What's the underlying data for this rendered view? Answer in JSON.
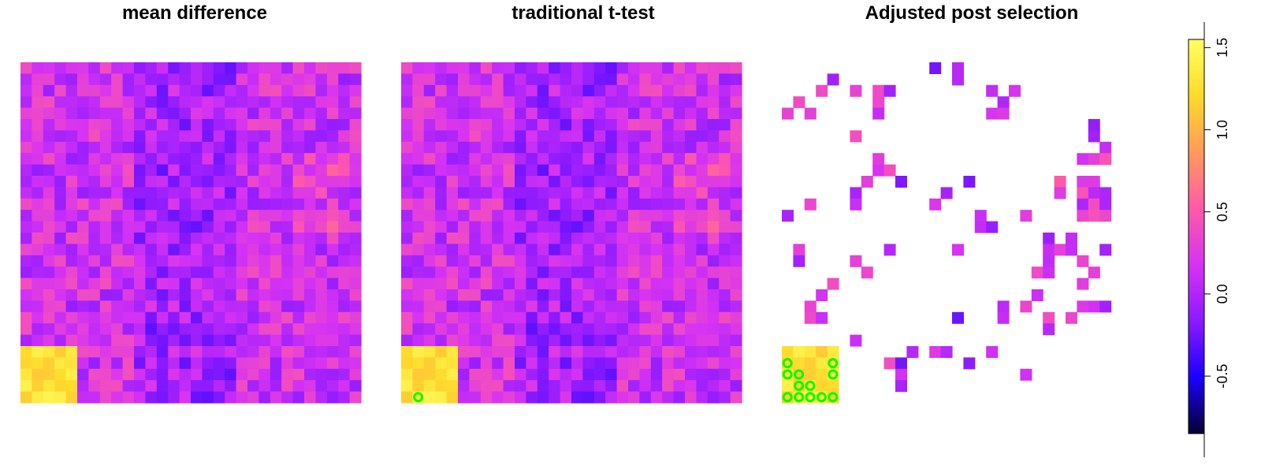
{
  "chart_data": {
    "type": "heatmap",
    "grid": {
      "rows": 30,
      "cols": 30,
      "note": "row 0 = top row of each panel"
    },
    "color_scale": {
      "min": -0.85,
      "max": 1.55,
      "ticks": [
        "-0.5",
        "0.0",
        "0.5",
        "1.0",
        "1.5"
      ],
      "tick_values": [
        -0.5,
        0.0,
        0.5,
        1.0,
        1.5
      ],
      "stops": [
        "#07002e",
        "#1a00ff",
        "#8c1aff",
        "#d633f2",
        "#ff5aa8",
        "#ff9a5a",
        "#ffdb2a",
        "#ffff60"
      ]
    },
    "panels": [
      {
        "title": "mean difference",
        "field": "full",
        "masked": false,
        "markers": []
      },
      {
        "title": "traditional t-test",
        "field": "full",
        "masked": false,
        "markers": [
          [
            29,
            1
          ]
        ]
      },
      {
        "title": "Adjusted post selection",
        "field": "full",
        "masked": true,
        "visible_cells": [
          [
            0,
            13
          ],
          [
            0,
            15
          ],
          [
            1,
            15
          ],
          [
            1,
            4
          ],
          [
            2,
            3
          ],
          [
            2,
            6
          ],
          [
            2,
            8
          ],
          [
            2,
            9
          ],
          [
            2,
            18
          ],
          [
            2,
            20
          ],
          [
            3,
            1
          ],
          [
            3,
            8
          ],
          [
            3,
            19
          ],
          [
            4,
            0
          ],
          [
            4,
            2
          ],
          [
            4,
            8
          ],
          [
            4,
            18
          ],
          [
            4,
            19
          ],
          [
            5,
            27
          ],
          [
            6,
            6
          ],
          [
            6,
            27
          ],
          [
            7,
            28
          ],
          [
            8,
            8
          ],
          [
            8,
            26
          ],
          [
            8,
            27
          ],
          [
            8,
            28
          ],
          [
            9,
            8
          ],
          [
            9,
            9
          ],
          [
            10,
            7
          ],
          [
            10,
            10
          ],
          [
            10,
            16
          ],
          [
            10,
            24
          ],
          [
            10,
            26
          ],
          [
            10,
            27
          ],
          [
            11,
            6
          ],
          [
            11,
            14
          ],
          [
            11,
            24
          ],
          [
            11,
            26
          ],
          [
            11,
            27
          ],
          [
            11,
            28
          ],
          [
            12,
            6
          ],
          [
            12,
            2
          ],
          [
            12,
            13
          ],
          [
            12,
            26
          ],
          [
            12,
            27
          ],
          [
            12,
            28
          ],
          [
            13,
            0
          ],
          [
            13,
            17
          ],
          [
            13,
            21
          ],
          [
            13,
            26
          ],
          [
            13,
            27
          ],
          [
            13,
            28
          ],
          [
            14,
            17
          ],
          [
            14,
            18
          ],
          [
            15,
            23
          ],
          [
            15,
            25
          ],
          [
            16,
            1
          ],
          [
            16,
            9
          ],
          [
            16,
            15
          ],
          [
            16,
            23
          ],
          [
            16,
            24
          ],
          [
            16,
            25
          ],
          [
            16,
            28
          ],
          [
            17,
            1
          ],
          [
            17,
            6
          ],
          [
            17,
            23
          ],
          [
            17,
            26
          ],
          [
            18,
            7
          ],
          [
            18,
            27
          ],
          [
            18,
            22
          ],
          [
            18,
            23
          ],
          [
            19,
            4
          ],
          [
            19,
            26
          ],
          [
            20,
            3
          ],
          [
            20,
            22
          ],
          [
            21,
            2
          ],
          [
            21,
            19
          ],
          [
            21,
            21
          ],
          [
            21,
            26
          ],
          [
            21,
            27
          ],
          [
            21,
            28
          ],
          [
            22,
            2
          ],
          [
            22,
            3
          ],
          [
            22,
            15
          ],
          [
            22,
            19
          ],
          [
            22,
            23
          ],
          [
            22,
            25
          ],
          [
            23,
            23
          ],
          [
            24,
            6
          ],
          [
            25,
            11
          ],
          [
            25,
            13
          ],
          [
            25,
            14
          ],
          [
            25,
            18
          ],
          [
            26,
            9
          ],
          [
            26,
            10
          ],
          [
            26,
            16
          ],
          [
            27,
            10
          ],
          [
            27,
            21
          ],
          [
            28,
            10
          ]
        ],
        "markers": [
          [
            26,
            0
          ],
          [
            26,
            4
          ],
          [
            27,
            0
          ],
          [
            27,
            1
          ],
          [
            27,
            4
          ],
          [
            28,
            1
          ],
          [
            28,
            2
          ],
          [
            29,
            0
          ],
          [
            29,
            1
          ],
          [
            29,
            2
          ],
          [
            29,
            3
          ],
          [
            29,
            4
          ]
        ]
      }
    ],
    "markers_style": {
      "color": "#00ff00",
      "shape": "ring"
    }
  }
}
